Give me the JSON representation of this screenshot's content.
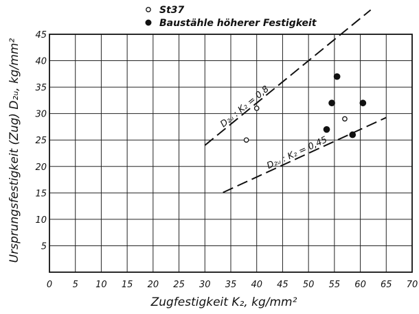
{
  "chart_data": {
    "type": "scatter",
    "xlabel": "Zugfestigkeit K₂, kg/mm²",
    "ylabel": "Ursprungsfestigkeit (Zug) D₂ᵤ, kg/mm²",
    "xlim": [
      0,
      70
    ],
    "ylim": [
      0,
      45
    ],
    "xticks": [
      "0",
      "5",
      "10",
      "15",
      "20",
      "25",
      "30",
      "35",
      "40",
      "45",
      "50",
      "55",
      "60",
      "65",
      "70"
    ],
    "yticks": [
      "5",
      "10",
      "15",
      "20",
      "25",
      "30",
      "35",
      "40",
      "45"
    ],
    "grid": true,
    "legend_position": "top-left",
    "series": [
      {
        "name": "St37",
        "marker": "open-circle",
        "points": [
          [
            38,
            25
          ],
          [
            40,
            31
          ],
          [
            57,
            29
          ]
        ]
      },
      {
        "name": "Baustähle höherer Festigkeit",
        "marker": "filled-circle",
        "points": [
          [
            53.5,
            27
          ],
          [
            54.5,
            32
          ],
          [
            55.5,
            37
          ],
          [
            58.5,
            26
          ],
          [
            60.5,
            32
          ]
        ]
      }
    ],
    "reference_lines": [
      {
        "label": "D₂ᵤ : K₂ = 0,8",
        "slope": 0.8,
        "x_range": [
          30,
          62
        ],
        "style": "dashed"
      },
      {
        "label": "D₂ᵤ : K₂ = 0,45",
        "slope": 0.45,
        "x_range": [
          33.5,
          65
        ],
        "style": "dashed"
      }
    ]
  }
}
